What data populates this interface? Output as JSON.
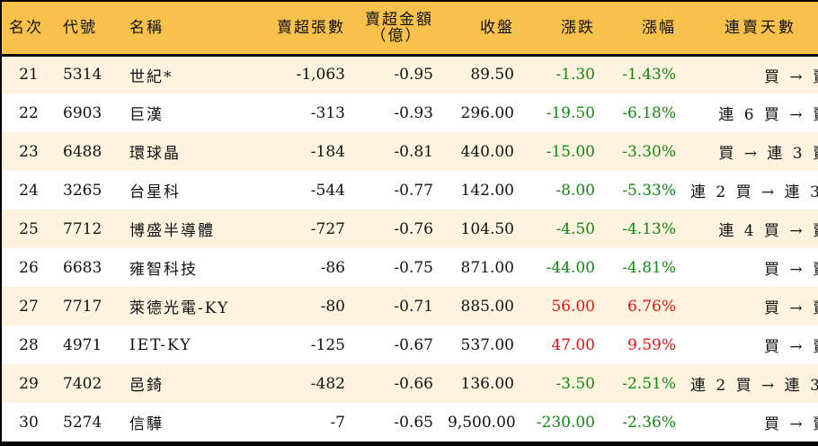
{
  "table": {
    "headers": {
      "rank": "名次",
      "code": "代號",
      "name": "名稱",
      "net_sell_volume": "賣超張數",
      "net_sell_amount_line1": "賣超金額",
      "net_sell_amount_line2": "（億）",
      "close": "收盤",
      "change": "漲跌",
      "change_pct": "漲幅",
      "consecutive_days": "連賣天數"
    },
    "colors": {
      "header_bg": "#f8c14c",
      "row_odd_bg": "#fdf3df",
      "row_even_bg": "#ffffff",
      "down": "#118811",
      "up": "#ee1111"
    },
    "rows": [
      {
        "rank": "21",
        "code": "5314",
        "name": "世紀*",
        "volume": "-1,063",
        "amount": "-0.95",
        "close": "89.50",
        "change": "-1.30",
        "pct": "-1.43%",
        "trend": "neg",
        "days": "買 → 賣"
      },
      {
        "rank": "22",
        "code": "6903",
        "name": "巨漢",
        "volume": "-313",
        "amount": "-0.93",
        "close": "296.00",
        "change": "-19.50",
        "pct": "-6.18%",
        "trend": "neg",
        "days": "連 6 買 → 賣"
      },
      {
        "rank": "23",
        "code": "6488",
        "name": "環球晶",
        "volume": "-184",
        "amount": "-0.81",
        "close": "440.00",
        "change": "-15.00",
        "pct": "-3.30%",
        "trend": "neg",
        "days": "買 → 連 3 賣"
      },
      {
        "rank": "24",
        "code": "3265",
        "name": "台星科",
        "volume": "-544",
        "amount": "-0.77",
        "close": "142.00",
        "change": "-8.00",
        "pct": "-5.33%",
        "trend": "neg",
        "days": "連 2 買 → 連 3 賣"
      },
      {
        "rank": "25",
        "code": "7712",
        "name": "博盛半導體",
        "volume": "-727",
        "amount": "-0.76",
        "close": "104.50",
        "change": "-4.50",
        "pct": "-4.13%",
        "trend": "neg",
        "days": "連 4 買 → 賣"
      },
      {
        "rank": "26",
        "code": "6683",
        "name": "雍智科技",
        "volume": "-86",
        "amount": "-0.75",
        "close": "871.00",
        "change": "-44.00",
        "pct": "-4.81%",
        "trend": "neg",
        "days": "買 → 賣"
      },
      {
        "rank": "27",
        "code": "7717",
        "name": "萊德光電-KY",
        "volume": "-80",
        "amount": "-0.71",
        "close": "885.00",
        "change": "56.00",
        "pct": "6.76%",
        "trend": "pos",
        "days": "買 → 賣"
      },
      {
        "rank": "28",
        "code": "4971",
        "name": "IET-KY",
        "volume": "-125",
        "amount": "-0.67",
        "close": "537.00",
        "change": "47.00",
        "pct": "9.59%",
        "trend": "pos",
        "days": "買 → 賣"
      },
      {
        "rank": "29",
        "code": "7402",
        "name": "邑錡",
        "volume": "-482",
        "amount": "-0.66",
        "close": "136.00",
        "change": "-3.50",
        "pct": "-2.51%",
        "trend": "neg",
        "days": "連 2 買 → 連 3 賣"
      },
      {
        "rank": "30",
        "code": "5274",
        "name": "信驊",
        "volume": "-7",
        "amount": "-0.65",
        "close": "9,500.00",
        "change": "-230.00",
        "pct": "-2.36%",
        "trend": "neg",
        "days": "買 → 賣"
      }
    ]
  }
}
